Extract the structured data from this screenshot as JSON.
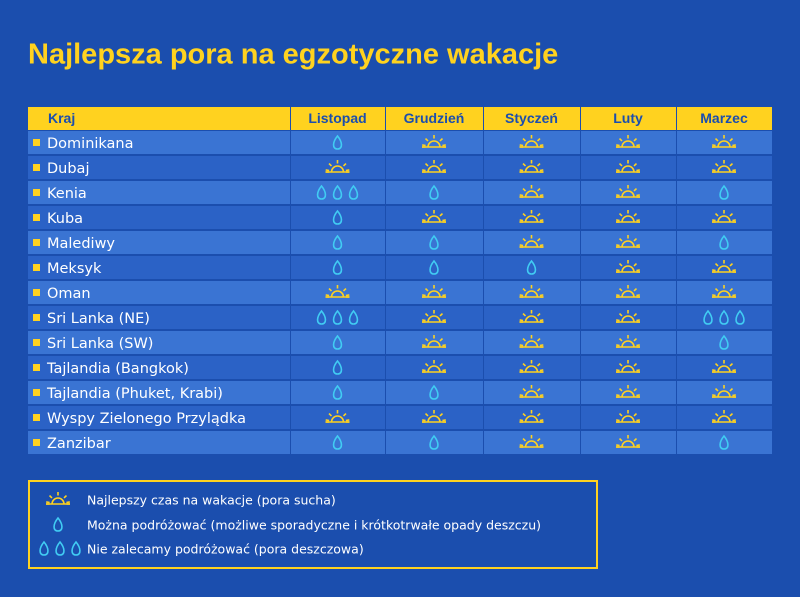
{
  "title": "Najlepsza pora na egzotyczne wakacje",
  "table": {
    "header": [
      "Kraj",
      "Listopad",
      "Grudzień",
      "Styczeń",
      "Luty",
      "Marzec"
    ],
    "rows": [
      {
        "country": "Dominikana",
        "ratings": [
          1,
          0,
          0,
          0,
          0
        ]
      },
      {
        "country": "Dubaj",
        "ratings": [
          0,
          0,
          0,
          0,
          0
        ]
      },
      {
        "country": "Kenia",
        "ratings": [
          2,
          1,
          0,
          0,
          1
        ]
      },
      {
        "country": "Kuba",
        "ratings": [
          1,
          0,
          0,
          0,
          0
        ]
      },
      {
        "country": "Malediwy",
        "ratings": [
          1,
          1,
          0,
          0,
          1
        ]
      },
      {
        "country": "Meksyk",
        "ratings": [
          1,
          1,
          1,
          0,
          0
        ]
      },
      {
        "country": "Oman",
        "ratings": [
          0,
          0,
          0,
          0,
          0
        ]
      },
      {
        "country": "Sri Lanka (NE)",
        "ratings": [
          2,
          0,
          0,
          0,
          2
        ]
      },
      {
        "country": "Sri Lanka (SW)",
        "ratings": [
          1,
          0,
          0,
          0,
          1
        ]
      },
      {
        "country": "Tajlandia (Bangkok)",
        "ratings": [
          1,
          0,
          0,
          0,
          0
        ]
      },
      {
        "country": "Tajlandia (Phuket, Krabi)",
        "ratings": [
          1,
          1,
          0,
          0,
          0
        ]
      },
      {
        "country": "Wyspy Zielonego Przylądka",
        "ratings": [
          0,
          0,
          0,
          0,
          0
        ]
      },
      {
        "country": "Zanzibar",
        "ratings": [
          1,
          1,
          0,
          0,
          1
        ]
      }
    ]
  },
  "legend": [
    "Najlepszy czas na wakacje (pora sucha)",
    "Można podróżować (możliwe sporadyczne i krótkotrwałe opady deszczu)",
    "Nie zalecamy podróżować (pora deszczowa)"
  ]
}
